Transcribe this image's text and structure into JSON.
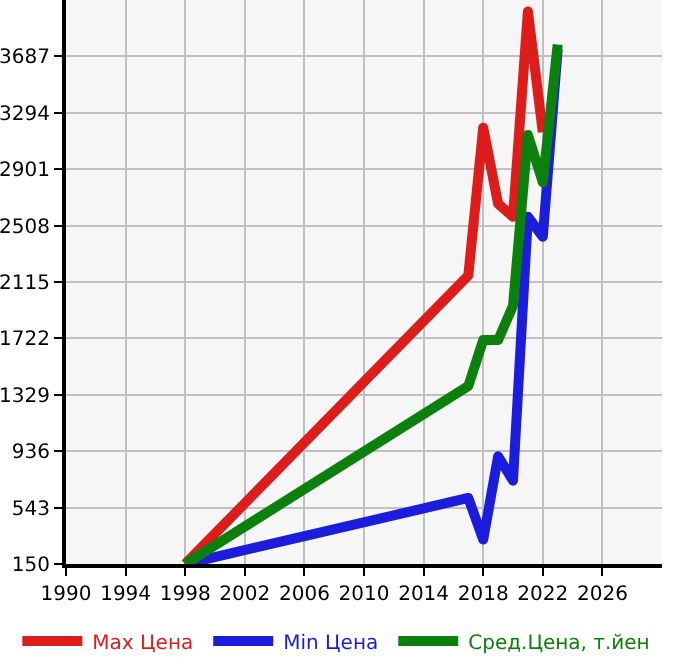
{
  "chart_data": {
    "type": "line",
    "x": [
      1998,
      2017,
      2018,
      2019,
      2020,
      2021,
      2022,
      2023
    ],
    "series": [
      {
        "name": "Max Цена",
        "color": "#dd1c1c",
        "values": [
          150,
          2160,
          3190,
          2660,
          2570,
          4000,
          3160,
          null
        ]
      },
      {
        "name": "Min Цена",
        "color": "#1c1cdd",
        "values": [
          150,
          610,
          320,
          900,
          730,
          2570,
          2430,
          3740
        ]
      },
      {
        "name": "Сред.Цена, т.йен",
        "color": "#0c800c",
        "values": [
          150,
          1390,
          1710,
          1710,
          1950,
          3140,
          2810,
          3770
        ]
      }
    ],
    "xlim": [
      1990,
      2030
    ],
    "xticks": [
      1990,
      1994,
      1998,
      2002,
      2006,
      2010,
      2014,
      2018,
      2022,
      2026
    ],
    "ylim": [
      150,
      4080
    ],
    "yticks": [
      150,
      543,
      936,
      1329,
      1722,
      2115,
      2508,
      2901,
      3294,
      3687
    ],
    "grid": true,
    "legend": "bottom",
    "marker": "none",
    "line_style": "solid"
  }
}
